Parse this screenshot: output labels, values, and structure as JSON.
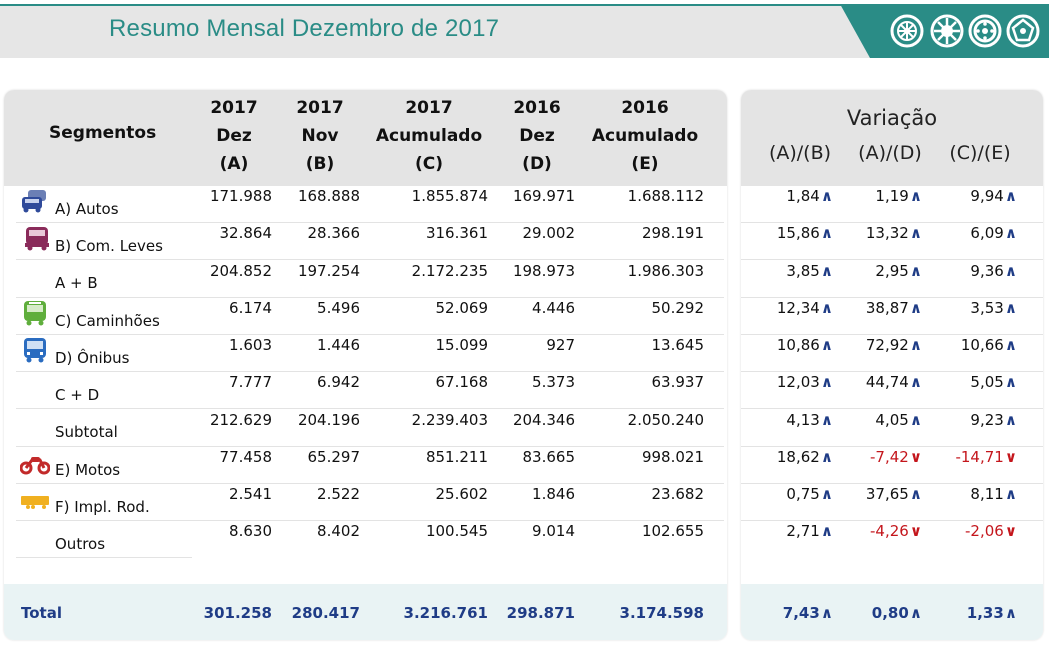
{
  "header": {
    "title": "Resumo Mensal Dezembro de 2017",
    "brand_color": "#2a8c86",
    "wheel_icons": [
      "wheel-icon",
      "wheel-icon",
      "wheel-icon",
      "wheel-icon"
    ]
  },
  "table": {
    "segment_header": "Segmentos",
    "columns": [
      {
        "l1": "2017",
        "l2": "Dez",
        "l3": "(A)"
      },
      {
        "l1": "2017",
        "l2": "Nov",
        "l3": "(B)"
      },
      {
        "l1": "2017",
        "l2": "Acumulado",
        "l3": "(C)"
      },
      {
        "l1": "2016",
        "l2": "Dez",
        "l3": "(D)"
      },
      {
        "l1": "2016",
        "l2": "Acumulado",
        "l3": "(E)"
      }
    ],
    "rows": [
      {
        "label": "A) Autos",
        "icon": "car-icon",
        "values": [
          "171.988",
          "168.888",
          "1.855.874",
          "169.971",
          "1.688.112"
        ]
      },
      {
        "label": "B) Com. Leves",
        "icon": "van-icon",
        "values": [
          "32.864",
          "28.366",
          "316.361",
          "29.002",
          "298.191"
        ]
      },
      {
        "label": "A + B",
        "icon": "",
        "values": [
          "204.852",
          "197.254",
          "2.172.235",
          "198.973",
          "1.986.303"
        ]
      },
      {
        "label": "C) Caminhões",
        "icon": "truck-icon",
        "values": [
          "6.174",
          "5.496",
          "52.069",
          "4.446",
          "50.292"
        ]
      },
      {
        "label": "D) Ônibus",
        "icon": "bus-icon",
        "values": [
          "1.603",
          "1.446",
          "15.099",
          "927",
          "13.645"
        ]
      },
      {
        "label": "C + D",
        "icon": "",
        "values": [
          "7.777",
          "6.942",
          "67.168",
          "5.373",
          "63.937"
        ]
      },
      {
        "label": "Subtotal",
        "icon": "",
        "values": [
          "212.629",
          "204.196",
          "2.239.403",
          "204.346",
          "2.050.240"
        ]
      },
      {
        "label": "E) Motos",
        "icon": "motorcycle-icon",
        "values": [
          "77.458",
          "65.297",
          "851.211",
          "83.665",
          "998.021"
        ]
      },
      {
        "label": "F) Impl. Rod.",
        "icon": "trailer-icon",
        "values": [
          "2.541",
          "2.522",
          "25.602",
          "1.846",
          "23.682"
        ]
      },
      {
        "label": "Outros",
        "icon": "",
        "values": [
          "8.630",
          "8.402",
          "100.545",
          "9.014",
          "102.655"
        ]
      }
    ],
    "total": {
      "label": "Total",
      "values": [
        "301.258",
        "280.417",
        "3.216.761",
        "298.871",
        "3.174.598"
      ]
    }
  },
  "variation": {
    "title": "Variação",
    "columns": [
      "(A)/(B)",
      "(A)/(D)",
      "(C)/(E)"
    ],
    "rows": [
      [
        {
          "v": "1,84",
          "dir": "up"
        },
        {
          "v": "1,19",
          "dir": "up"
        },
        {
          "v": "9,94",
          "dir": "up"
        }
      ],
      [
        {
          "v": "15,86",
          "dir": "up"
        },
        {
          "v": "13,32",
          "dir": "up"
        },
        {
          "v": "6,09",
          "dir": "up"
        }
      ],
      [
        {
          "v": "3,85",
          "dir": "up"
        },
        {
          "v": "2,95",
          "dir": "up"
        },
        {
          "v": "9,36",
          "dir": "up"
        }
      ],
      [
        {
          "v": "12,34",
          "dir": "up"
        },
        {
          "v": "38,87",
          "dir": "up"
        },
        {
          "v": "3,53",
          "dir": "up"
        }
      ],
      [
        {
          "v": "10,86",
          "dir": "up"
        },
        {
          "v": "72,92",
          "dir": "up"
        },
        {
          "v": "10,66",
          "dir": "up"
        }
      ],
      [
        {
          "v": "12,03",
          "dir": "up"
        },
        {
          "v": "44,74",
          "dir": "up"
        },
        {
          "v": "5,05",
          "dir": "up"
        }
      ],
      [
        {
          "v": "4,13",
          "dir": "up"
        },
        {
          "v": "4,05",
          "dir": "up"
        },
        {
          "v": "9,23",
          "dir": "up"
        }
      ],
      [
        {
          "v": "18,62",
          "dir": "up"
        },
        {
          "v": "-7,42",
          "dir": "down"
        },
        {
          "v": "-14,71",
          "dir": "down"
        }
      ],
      [
        {
          "v": "0,75",
          "dir": "up"
        },
        {
          "v": "37,65",
          "dir": "up"
        },
        {
          "v": "8,11",
          "dir": "up"
        }
      ],
      [
        {
          "v": "2,71",
          "dir": "up"
        },
        {
          "v": "-4,26",
          "dir": "down"
        },
        {
          "v": "-2,06",
          "dir": "down"
        }
      ]
    ],
    "total": [
      {
        "v": "7,43",
        "dir": "up"
      },
      {
        "v": "0,80",
        "dir": "up"
      },
      {
        "v": "1,33",
        "dir": "up"
      }
    ],
    "up_color": "#1f3c86",
    "down_color": "#c4161c"
  }
}
